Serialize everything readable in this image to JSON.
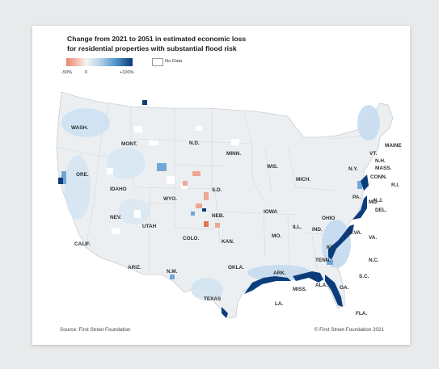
{
  "title": {
    "line1": "Change from 2021 to 2051 in estimated economic loss",
    "line2": "for residential properties with substantial flood risk"
  },
  "legend": {
    "ticks": [
      "-50%",
      "0",
      "+100%"
    ],
    "no_data": "No Data",
    "colors": {
      "low": "#e8866f",
      "zero": "#f3f3f3",
      "high": "#0a3a78",
      "no_data": "#ffffff"
    }
  },
  "states": [
    {
      "id": "wa",
      "label": "WASH."
    },
    {
      "id": "mt",
      "label": "MONT."
    },
    {
      "id": "nd",
      "label": "N.D."
    },
    {
      "id": "mn",
      "label": "MINN."
    },
    {
      "id": "wi",
      "label": "WIS."
    },
    {
      "id": "mi",
      "label": "MICH."
    },
    {
      "id": "vt",
      "label": "VT."
    },
    {
      "id": "nh",
      "label": "N.H."
    },
    {
      "id": "me",
      "label": "MAINE"
    },
    {
      "id": "ma",
      "label": "MASS."
    },
    {
      "id": "ny",
      "label": "N.Y."
    },
    {
      "id": "ct",
      "label": "CONN."
    },
    {
      "id": "ri",
      "label": "R.I."
    },
    {
      "id": "or",
      "label": "ORE."
    },
    {
      "id": "id",
      "label": "IDAHO"
    },
    {
      "id": "wy",
      "label": "WYO."
    },
    {
      "id": "sd",
      "label": "S.D."
    },
    {
      "id": "ne",
      "label": "NEB."
    },
    {
      "id": "ia",
      "label": "IOWA"
    },
    {
      "id": "il",
      "label": "ILL."
    },
    {
      "id": "in",
      "label": "IND."
    },
    {
      "id": "oh",
      "label": "OHIO"
    },
    {
      "id": "pa",
      "label": "PA."
    },
    {
      "id": "nj",
      "label": "N.J."
    },
    {
      "id": "de",
      "label": "DEL."
    },
    {
      "id": "md",
      "label": "MD."
    },
    {
      "id": "nv",
      "label": "NEV."
    },
    {
      "id": "ut",
      "label": "UTAH"
    },
    {
      "id": "co",
      "label": "COLO."
    },
    {
      "id": "ks",
      "label": "KAN."
    },
    {
      "id": "mo",
      "label": "MO."
    },
    {
      "id": "ky",
      "label": "KY."
    },
    {
      "id": "wv",
      "label": "W.VA."
    },
    {
      "id": "va",
      "label": "VA."
    },
    {
      "id": "ca",
      "label": "CALIF."
    },
    {
      "id": "az",
      "label": "ARIZ."
    },
    {
      "id": "nm",
      "label": "N.M."
    },
    {
      "id": "ok",
      "label": "OKLA."
    },
    {
      "id": "ar",
      "label": "ARK."
    },
    {
      "id": "tn",
      "label": "TENN."
    },
    {
      "id": "nc",
      "label": "N.C."
    },
    {
      "id": "sc",
      "label": "S.C."
    },
    {
      "id": "ms",
      "label": "MISS."
    },
    {
      "id": "al",
      "label": "ALA."
    },
    {
      "id": "ga",
      "label": "GA."
    },
    {
      "id": "tx",
      "label": "TEXAS"
    },
    {
      "id": "la",
      "label": "LA."
    },
    {
      "id": "fl",
      "label": "FLA."
    }
  ],
  "footer": {
    "source": "Source: First Street Foundation",
    "copyright": "© First Street Foundation 2021"
  }
}
